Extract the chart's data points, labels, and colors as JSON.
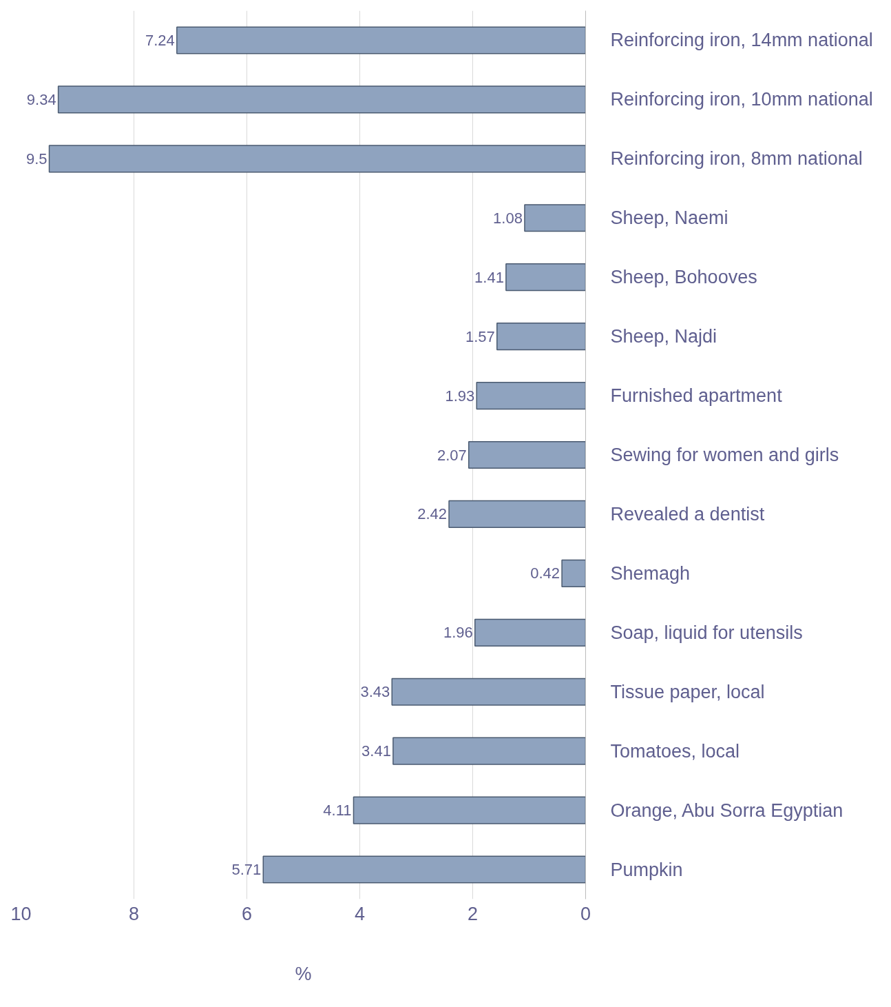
{
  "chart_data": {
    "type": "bar",
    "orientation": "horizontal",
    "xlabel": "%",
    "categories": [
      "Reinforcing iron, 14mm national",
      "Reinforcing iron, 10mm national",
      "Reinforcing iron, 8mm national",
      "Sheep, Naemi",
      "Sheep, Bohooves",
      "Sheep, Najdi",
      "Furnished apartment",
      "Sewing for women and girls",
      "Revealed a dentist",
      "Shemagh",
      "Soap, liquid for utensils",
      "Tissue paper, local",
      "Tomatoes, local",
      "Orange, Abu Sorra Egyptian",
      "Pumpkin"
    ],
    "values": [
      7.24,
      9.34,
      9.5,
      1.08,
      1.41,
      1.57,
      1.93,
      2.07,
      2.42,
      0.42,
      1.96,
      3.43,
      3.41,
      4.11,
      5.71
    ],
    "color": "#8fa3bf",
    "xlim": [
      10,
      0
    ],
    "xticks": [
      10,
      8,
      6,
      4,
      2,
      0
    ],
    "grid": "x",
    "data_labels": true
  }
}
